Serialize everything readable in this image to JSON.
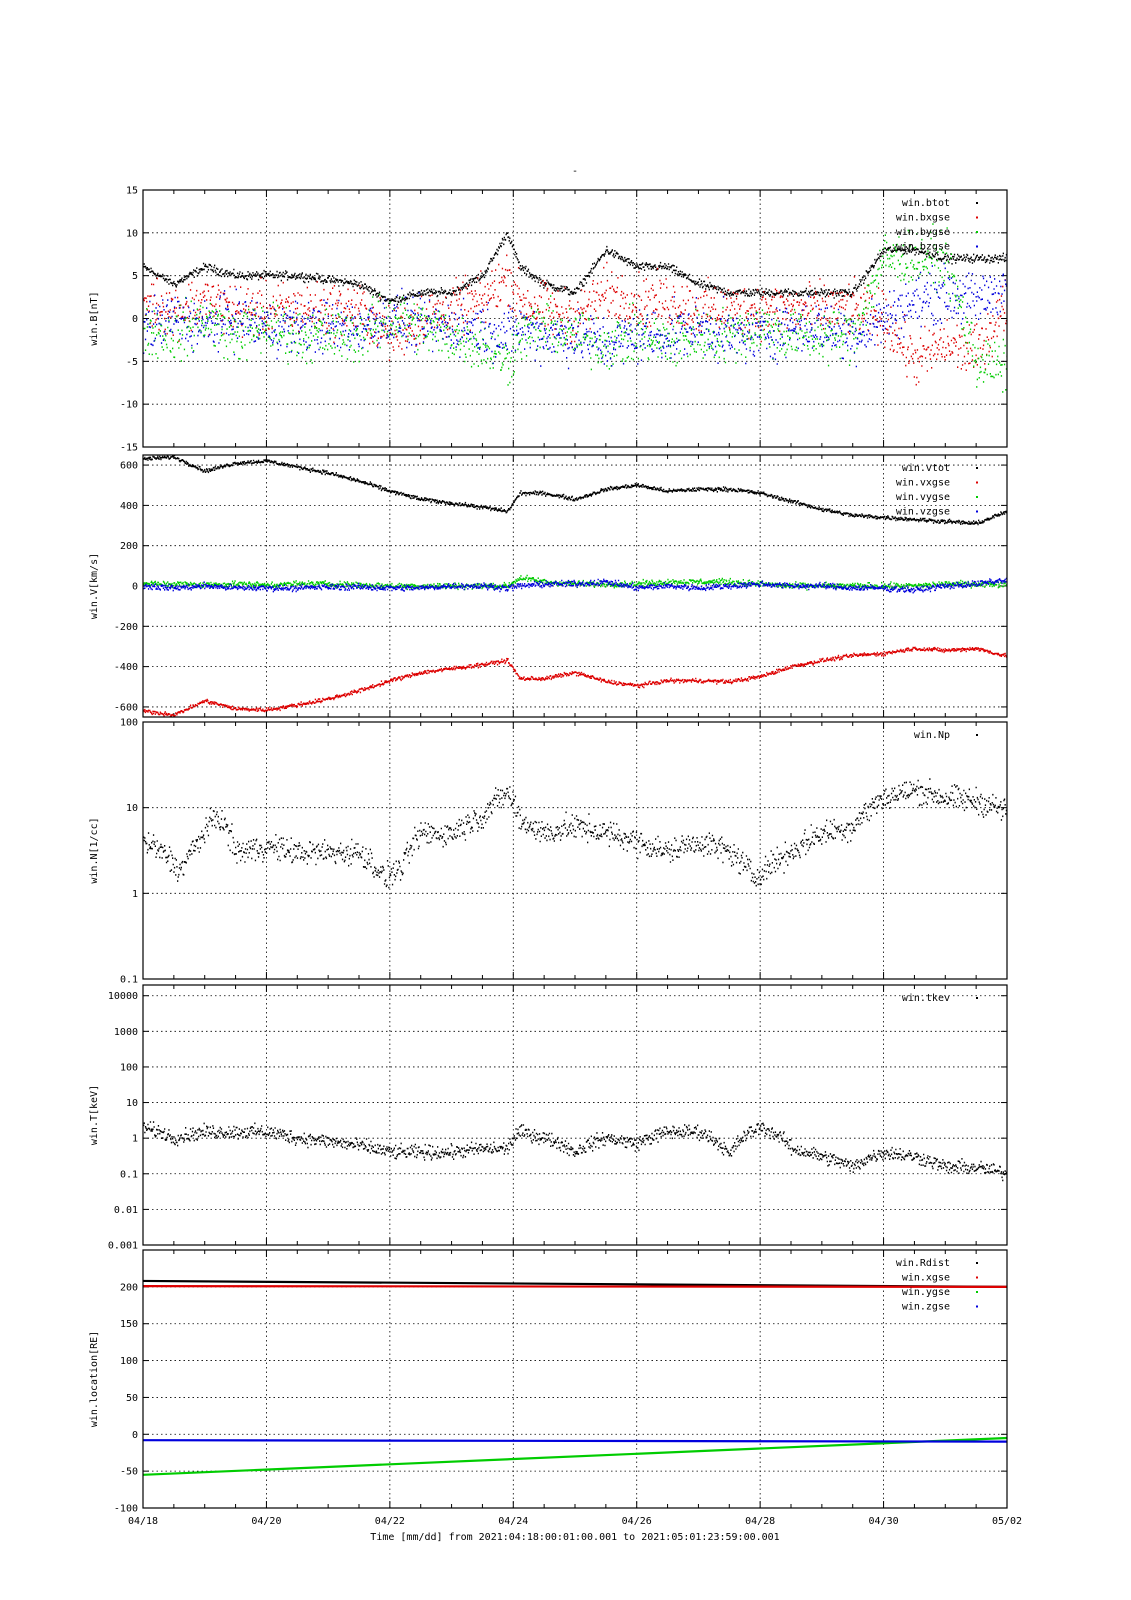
{
  "figure": {
    "title": "-",
    "x_axis": {
      "label": "Time [mm/dd]  from 2021:04:18:00:01:00.001  to  2021:05:01:23:59:00.001",
      "range_days": [
        0,
        14
      ],
      "tick_labels": [
        "04/18",
        "04/20",
        "04/22",
        "04/24",
        "04/26",
        "04/28",
        "04/30",
        "05/02"
      ],
      "tick_days": [
        0,
        2,
        4,
        6,
        8,
        10,
        12,
        14
      ]
    }
  },
  "colors": {
    "black": "#000000",
    "red": "#dd0000",
    "green": "#00cc00",
    "blue": "#0000dd"
  },
  "chart_data": [
    {
      "type": "scatter",
      "ylabel": "win.B[nT]",
      "ylim": [
        -15,
        15
      ],
      "yticks": [
        15,
        10,
        5,
        0,
        -5,
        -10,
        -15
      ],
      "ytick_labels": [
        "15",
        "10",
        "5",
        "0",
        "-5",
        "-10",
        "-15"
      ],
      "grid": true,
      "legend_position": "top-right",
      "series": [
        {
          "name": "win.btot",
          "color": "black",
          "x": [
            0,
            0.5,
            1,
            1.5,
            2,
            2.5,
            3,
            3.5,
            4,
            4.5,
            5,
            5.5,
            5.9,
            6.1,
            6.5,
            7,
            7.5,
            8,
            8.5,
            9,
            9.5,
            10,
            10.5,
            11,
            11.5,
            12,
            12.5,
            13,
            13.5,
            14
          ],
          "values": [
            6,
            4,
            6,
            5,
            5,
            5,
            4.5,
            4,
            2,
            3,
            3,
            5,
            10,
            6,
            4,
            3,
            8,
            6,
            6,
            4,
            3,
            3,
            3,
            3,
            3,
            8,
            8,
            7,
            7,
            7
          ],
          "noise": 0.4
        },
        {
          "name": "win.bxgse",
          "color": "red",
          "x": [
            0,
            0.5,
            1,
            1.5,
            2,
            2.5,
            3,
            3.5,
            4,
            4.5,
            5,
            5.5,
            5.9,
            6.1,
            6.5,
            7,
            7.5,
            8,
            8.5,
            9,
            9.5,
            10,
            10.5,
            11,
            11.5,
            12,
            12.5,
            13,
            13.5,
            14
          ],
          "values": [
            2,
            1,
            2,
            1,
            1,
            1,
            1,
            1,
            -2,
            0,
            1,
            2,
            5,
            2,
            1,
            0,
            3,
            2,
            2,
            1,
            1,
            1,
            1,
            1,
            1,
            0,
            -5,
            -3,
            -4,
            2
          ],
          "noise": 2.5
        },
        {
          "name": "win.bygse",
          "color": "green",
          "x": [
            0,
            0.5,
            1,
            1.5,
            2,
            2.5,
            3,
            3.5,
            4,
            4.5,
            5,
            5.5,
            5.9,
            6.1,
            6.5,
            7,
            7.5,
            8,
            8.5,
            9,
            9.5,
            10,
            10.5,
            11,
            11.5,
            12,
            12.5,
            13,
            13.5,
            14
          ],
          "values": [
            -1,
            -2,
            0,
            -2,
            -1,
            -2,
            -2,
            -2,
            0,
            -1,
            -2,
            -3,
            -5,
            -2,
            -1,
            -2,
            -3,
            -2,
            -3,
            -2,
            -2,
            -1,
            -2,
            -2,
            -2,
            7,
            7,
            7,
            -5,
            -6
          ],
          "noise": 2.5
        },
        {
          "name": "win.bzgse",
          "color": "blue",
          "x": [
            0,
            0.5,
            1,
            1.5,
            2,
            2.5,
            3,
            3.5,
            4,
            4.5,
            5,
            5.5,
            5.9,
            6.1,
            6.5,
            7,
            7.5,
            8,
            8.5,
            9,
            9.5,
            10,
            10.5,
            11,
            11.5,
            12,
            12.5,
            13,
            13.5,
            14
          ],
          "values": [
            -1,
            0,
            -1,
            0,
            -1,
            -1,
            -1,
            -1,
            0,
            -1,
            -1,
            -1,
            -2,
            -1,
            -2,
            -2,
            -3,
            -2,
            -2,
            -1,
            -2,
            -2,
            -1,
            -1,
            -2,
            0,
            2,
            3,
            2,
            4
          ],
          "noise": 2.5
        }
      ]
    },
    {
      "type": "scatter",
      "ylabel": "win.V[km/s]",
      "ylim": [
        -650,
        650
      ],
      "yticks": [
        600,
        400,
        200,
        0,
        -200,
        -400,
        -600
      ],
      "ytick_labels": [
        "600",
        "400",
        "200",
        "0",
        "-200",
        "-400",
        "-600"
      ],
      "grid": true,
      "legend_position": "top-right",
      "series": [
        {
          "name": "win.vtot",
          "color": "black",
          "x": [
            0,
            0.5,
            1,
            1.5,
            2,
            2.5,
            3,
            3.5,
            4,
            4.5,
            5,
            5.5,
            5.9,
            6.1,
            6.5,
            7,
            7.5,
            8,
            8.5,
            9,
            9.5,
            10,
            10.5,
            11,
            11.5,
            12,
            12.5,
            13,
            13.5,
            14
          ],
          "values": [
            630,
            640,
            570,
            610,
            620,
            590,
            560,
            520,
            470,
            430,
            410,
            390,
            370,
            460,
            460,
            430,
            480,
            500,
            470,
            480,
            480,
            460,
            420,
            380,
            350,
            340,
            330,
            320,
            310,
            370
          ],
          "noise": 8
        },
        {
          "name": "win.vxgse",
          "color": "red",
          "x": [
            0,
            0.5,
            1,
            1.5,
            2,
            2.5,
            3,
            3.5,
            4,
            4.5,
            5,
            5.5,
            5.9,
            6.1,
            6.5,
            7,
            7.5,
            8,
            8.5,
            9,
            9.5,
            10,
            10.5,
            11,
            11.5,
            12,
            12.5,
            13,
            13.5,
            14
          ],
          "values": [
            -620,
            -640,
            -570,
            -610,
            -615,
            -590,
            -560,
            -520,
            -470,
            -430,
            -410,
            -390,
            -370,
            -460,
            -460,
            -430,
            -475,
            -495,
            -470,
            -470,
            -475,
            -450,
            -400,
            -370,
            -345,
            -335,
            -310,
            -320,
            -310,
            -350
          ],
          "noise": 8
        },
        {
          "name": "win.vygse",
          "color": "green",
          "x": [
            0,
            0.5,
            1,
            1.5,
            2,
            2.5,
            3,
            3.5,
            4,
            4.5,
            5,
            5.5,
            5.9,
            6.1,
            6.5,
            7,
            7.5,
            8,
            8.5,
            9,
            9.5,
            10,
            10.5,
            11,
            11.5,
            12,
            12.5,
            13,
            13.5,
            14
          ],
          "values": [
            10,
            10,
            5,
            10,
            5,
            10,
            10,
            5,
            0,
            0,
            0,
            0,
            0,
            40,
            20,
            10,
            10,
            10,
            20,
            20,
            20,
            10,
            0,
            0,
            0,
            0,
            0,
            10,
            10,
            10
          ],
          "noise": 12
        },
        {
          "name": "win.vzgse",
          "color": "blue",
          "x": [
            0,
            0.5,
            1,
            1.5,
            2,
            2.5,
            3,
            3.5,
            4,
            4.5,
            5,
            5.5,
            5.9,
            6.1,
            6.5,
            7,
            7.5,
            8,
            8.5,
            9,
            9.5,
            10,
            10.5,
            11,
            11.5,
            12,
            12.5,
            13,
            13.5,
            14
          ],
          "values": [
            0,
            -10,
            0,
            -10,
            -10,
            -10,
            -5,
            -5,
            -10,
            -10,
            0,
            0,
            -10,
            0,
            10,
            10,
            20,
            -10,
            0,
            -10,
            0,
            10,
            0,
            0,
            -10,
            -10,
            -20,
            0,
            10,
            30
          ],
          "noise": 12
        }
      ]
    },
    {
      "type": "scatter",
      "ylabel": "win.N[1/cc]",
      "yscale": "log",
      "ylim": [
        0.1,
        100
      ],
      "yticks": [
        100,
        10,
        1,
        0.1
      ],
      "ytick_labels": [
        "100",
        "10",
        "1",
        "0.1"
      ],
      "grid": true,
      "legend_position": "top-right",
      "series": [
        {
          "name": "win.Np",
          "color": "black",
          "x": [
            0,
            0.3,
            0.6,
            0.9,
            1.2,
            1.5,
            2,
            2.5,
            3,
            3.5,
            3.9,
            4.2,
            4.5,
            5,
            5.5,
            5.9,
            6.1,
            6.5,
            7,
            7.5,
            8,
            8.5,
            9,
            9.5,
            9.9,
            10.1,
            10.5,
            11,
            11.5,
            12,
            12.5,
            13,
            13.5,
            14
          ],
          "values": [
            4,
            3,
            1.8,
            4,
            8,
            3,
            3.5,
            3,
            3,
            3,
            1.5,
            2,
            5,
            5,
            8,
            15,
            7,
            5,
            6,
            5,
            4,
            3,
            4,
            3,
            1.5,
            2,
            3,
            5,
            6,
            13,
            16,
            13,
            12,
            9
          ],
          "noise": 0.06
        }
      ]
    },
    {
      "type": "scatter",
      "ylabel": "win.T[keV]",
      "yscale": "log",
      "ylim": [
        0.001,
        20000
      ],
      "yticks": [
        10000,
        1000,
        100,
        10,
        1,
        0.1,
        0.01,
        0.001
      ],
      "ytick_labels": [
        "10000",
        "1000",
        "100",
        "10",
        "1",
        "0.1",
        "0.01",
        "0.001"
      ],
      "grid": true,
      "legend_position": "top-right",
      "series": [
        {
          "name": "win.tkev",
          "color": "black",
          "x": [
            0,
            0.5,
            1,
            1.5,
            2,
            2.5,
            3,
            3.5,
            4,
            4.5,
            5,
            5.5,
            5.9,
            6.1,
            6.5,
            7,
            7.5,
            8,
            8.5,
            9,
            9.5,
            10,
            10.5,
            11,
            11.5,
            12,
            12.5,
            13,
            13.5,
            14
          ],
          "values": [
            2,
            1,
            1.5,
            1.5,
            1.5,
            1,
            0.8,
            0.6,
            0.4,
            0.4,
            0.4,
            0.5,
            0.5,
            1.5,
            1,
            0.4,
            1,
            0.7,
            1.5,
            1.5,
            0.3,
            2,
            0.5,
            0.3,
            0.15,
            0.4,
            0.3,
            0.15,
            0.15,
            0.1
          ],
          "noise": 0.08
        }
      ]
    },
    {
      "type": "line",
      "ylabel": "win.location[RE]",
      "ylim": [
        -100,
        250
      ],
      "yticks": [
        200,
        150,
        100,
        50,
        0,
        -50,
        -100
      ],
      "ytick_labels": [
        "200",
        "150",
        "100",
        "50",
        "0",
        "-50",
        "-100"
      ],
      "grid": true,
      "legend_position": "top-right",
      "series": [
        {
          "name": "win.Rdist",
          "color": "black",
          "x": [
            0,
            14
          ],
          "values": [
            208,
            200
          ]
        },
        {
          "name": "win.xgse",
          "color": "red",
          "x": [
            0,
            14
          ],
          "values": [
            201,
            200
          ]
        },
        {
          "name": "win.ygse",
          "color": "green",
          "x": [
            0,
            14
          ],
          "values": [
            -55,
            -5
          ]
        },
        {
          "name": "win.zgse",
          "color": "blue",
          "x": [
            0,
            14
          ],
          "values": [
            -8,
            -10
          ]
        }
      ]
    }
  ]
}
